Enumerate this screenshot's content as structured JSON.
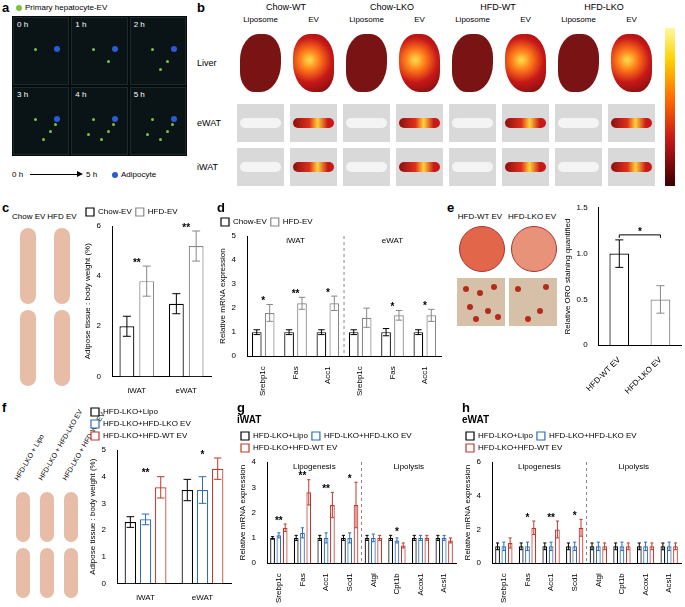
{
  "panels": {
    "a": {
      "panel": "a",
      "legend_top": "Primary hepatocyte-EV",
      "frames": [
        "0 h",
        "1 h",
        "2 h",
        "3 h",
        "4 h",
        "5 h"
      ],
      "legend_bottom": "Adipocyte",
      "timeline": [
        "0 h",
        "5 h"
      ]
    },
    "b": {
      "panel": "b",
      "groups": [
        "Chow-WT",
        "Chow-LKO",
        "HFD-WT",
        "HFD-LKO"
      ],
      "columns": [
        "Liposome",
        "EV"
      ],
      "rows": [
        "Liver",
        "eWAT",
        "iWAT"
      ]
    },
    "c_images": [
      "Chow EV",
      "HFD EV"
    ],
    "e_images": [
      "HFD-WT EV",
      "HFD-LKO EV"
    ],
    "f_images": [
      "HFD-LKO + Lipo",
      "HFD-LKO + HFD-LKO EV",
      "HFD-LKO + HFD-WT EV"
    ]
  },
  "chart_data": [
    {
      "panel": "c",
      "type": "bar",
      "categories": [
        "iWAT",
        "eWAT"
      ],
      "y_label": "Adipose tissue : body weight (%)",
      "ylim": [
        0,
        6
      ],
      "yticks": [
        0,
        2,
        4,
        6
      ],
      "legend": "top-left",
      "grid": false,
      "series": [
        {
          "name": "Chow-EV",
          "color": "#000000",
          "values": [
            2.0,
            2.9
          ],
          "errors": [
            0.4,
            0.4
          ]
        },
        {
          "name": "HFD-EV",
          "color": "#888888",
          "values": [
            3.8,
            5.2
          ],
          "errors": [
            0.6,
            0.6
          ]
        }
      ],
      "annotations": [
        {
          "index": 0,
          "text": "**"
        },
        {
          "index": 1,
          "text": "**"
        }
      ]
    },
    {
      "panel": "d",
      "type": "bar",
      "groups": [
        "iWAT",
        "eWAT"
      ],
      "categories": [
        "Srebp1c",
        "Fas",
        "Acc1",
        "Srebp1c",
        "Fas",
        "Acc1"
      ],
      "y_label": "Relative mRNA expression",
      "ylim": [
        0,
        5
      ],
      "yticks": [
        0,
        1,
        2,
        3,
        4,
        5
      ],
      "legend": "top-left",
      "grid": false,
      "series": [
        {
          "name": "Chow-EV",
          "color": "#000000",
          "values": [
            1.0,
            1.0,
            1.0,
            1.0,
            1.0,
            1.0
          ],
          "errors": [
            0.1,
            0.1,
            0.1,
            0.1,
            0.15,
            0.1
          ]
        },
        {
          "name": "HFD-EV",
          "color": "#888888",
          "values": [
            1.8,
            2.2,
            2.2,
            1.6,
            1.7,
            1.7
          ],
          "errors": [
            0.35,
            0.25,
            0.3,
            0.4,
            0.2,
            0.25
          ]
        }
      ],
      "annotations": [
        {
          "index": 0,
          "text": "*"
        },
        {
          "index": 1,
          "text": "**"
        },
        {
          "index": 2,
          "text": "*"
        },
        {
          "index": 4,
          "text": "*"
        },
        {
          "index": 5,
          "text": "*"
        }
      ]
    },
    {
      "panel": "e",
      "type": "bar",
      "categories": [
        "HFD-WT EV",
        "HFD-LKO EV"
      ],
      "y_label": "Relative ORO staining quantified",
      "ylim": [
        0,
        1.5
      ],
      "yticks": [
        0,
        0.5,
        {
          "value": 1,
          "label": "1.0"
        },
        1.5
      ],
      "grid": false,
      "values": [
        1.0,
        0.5
      ],
      "errors": [
        0.15,
        0.15
      ],
      "colors": [
        "#000000",
        "#888888"
      ],
      "annotations": [
        {
          "from": 0,
          "to": 1,
          "text": "*"
        }
      ]
    },
    {
      "panel": "f",
      "type": "bar",
      "categories": [
        "iWAT",
        "eWAT"
      ],
      "y_label": "Adipose tissue : body weight (%)",
      "ylim": [
        0,
        5
      ],
      "yticks": [
        0,
        1,
        2,
        3,
        4,
        5
      ],
      "legend": "top-left",
      "grid": false,
      "series": [
        {
          "name": "HFD-LKO+Lipo",
          "color": "#000000",
          "values": [
            2.3,
            3.5
          ],
          "errors": [
            0.2,
            0.4
          ]
        },
        {
          "name": "HFD-LKO+HFD-LKO EV",
          "color": "#2f6db5",
          "values": [
            2.4,
            3.5
          ],
          "errors": [
            0.2,
            0.5
          ]
        },
        {
          "name": "HFD-LKO+HFD-WT EV",
          "color": "#c0392b",
          "values": [
            3.6,
            4.3
          ],
          "errors": [
            0.4,
            0.4
          ]
        }
      ],
      "annotations": [
        {
          "index": 0,
          "text": "**"
        },
        {
          "index": 1,
          "text": "*"
        }
      ]
    },
    {
      "panel": "g",
      "type": "bar",
      "title": "iWAT",
      "groups": [
        "Lipogenesis",
        "Lipolysis"
      ],
      "categories": [
        "Srebp1c",
        "Fas",
        "Acc1",
        "Scd1",
        "Atgl",
        "Cpt1b",
        "Acox1",
        "Acsl1"
      ],
      "y_label": "Relative mRNA expression",
      "ylim": [
        0,
        4
      ],
      "yticks": [
        0,
        1,
        2,
        3,
        4
      ],
      "legend": "top-left",
      "grid": false,
      "series": [
        {
          "name": "HFD-LKO+Lipo",
          "color": "#000000",
          "values": [
            1.0,
            1.0,
            1.0,
            1.0,
            1.0,
            1.0,
            1.0,
            1.0
          ],
          "errors": [
            0.05,
            0.1,
            0.1,
            0.1,
            0.1,
            0.1,
            0.1,
            0.1
          ]
        },
        {
          "name": "HFD-LKO+HFD-LKO EV",
          "color": "#2f6db5",
          "values": [
            1.1,
            1.2,
            1.0,
            1.0,
            1.0,
            0.9,
            1.0,
            1.0
          ],
          "errors": [
            0.1,
            0.2,
            0.2,
            0.2,
            0.15,
            0.1,
            0.1,
            0.1
          ]
        },
        {
          "name": "HFD-LKO+HFD-WT EV",
          "color": "#c0392b",
          "values": [
            1.4,
            2.8,
            2.3,
            2.3,
            1.0,
            0.7,
            1.0,
            0.9
          ],
          "errors": [
            0.15,
            0.5,
            0.5,
            0.9,
            0.1,
            0.1,
            0.1,
            0.1
          ]
        }
      ],
      "annotations": [
        {
          "index": 0,
          "text": "**"
        },
        {
          "index": 1,
          "text": "**"
        },
        {
          "index": 2,
          "text": "**"
        },
        {
          "index": 3,
          "text": "*"
        },
        {
          "index": 5,
          "text": "*"
        }
      ]
    },
    {
      "panel": "h",
      "type": "bar",
      "title": "eWAT",
      "groups": [
        "Lipogenesis",
        "Lipolysis"
      ],
      "categories": [
        "Srebp1c",
        "Fas",
        "Acc1",
        "Scd1",
        "Atgl",
        "Cpt1b",
        "Acox1",
        "Acsl1"
      ],
      "y_label": "Relative mRNA expression",
      "ylim": [
        0,
        6
      ],
      "yticks": [
        0,
        2,
        4,
        6
      ],
      "legend": "top-left",
      "grid": false,
      "series": [
        {
          "name": "HFD-LKO+Lipo",
          "color": "#000000",
          "values": [
            1.0,
            1.0,
            1.0,
            1.0,
            1.0,
            1.0,
            1.0,
            1.0
          ],
          "errors": [
            0.2,
            0.2,
            0.2,
            0.2,
            0.2,
            0.2,
            0.2,
            0.2
          ]
        },
        {
          "name": "HFD-LKO+HFD-LKO EV",
          "color": "#2f6db5",
          "values": [
            1.0,
            1.0,
            1.0,
            1.0,
            1.0,
            1.0,
            1.0,
            1.0
          ],
          "errors": [
            0.25,
            0.25,
            0.25,
            0.25,
            0.25,
            0.25,
            0.25,
            0.25
          ]
        },
        {
          "name": "HFD-LKO+HFD-WT EV",
          "color": "#c0392b",
          "values": [
            1.2,
            2.1,
            2.0,
            2.1,
            1.0,
            1.0,
            1.0,
            1.0
          ],
          "errors": [
            0.3,
            0.4,
            0.5,
            0.5,
            0.2,
            0.2,
            0.2,
            0.2
          ]
        }
      ],
      "annotations": [
        {
          "index": 1,
          "text": "*"
        },
        {
          "index": 2,
          "text": "**"
        },
        {
          "index": 3,
          "text": "*"
        }
      ]
    }
  ]
}
